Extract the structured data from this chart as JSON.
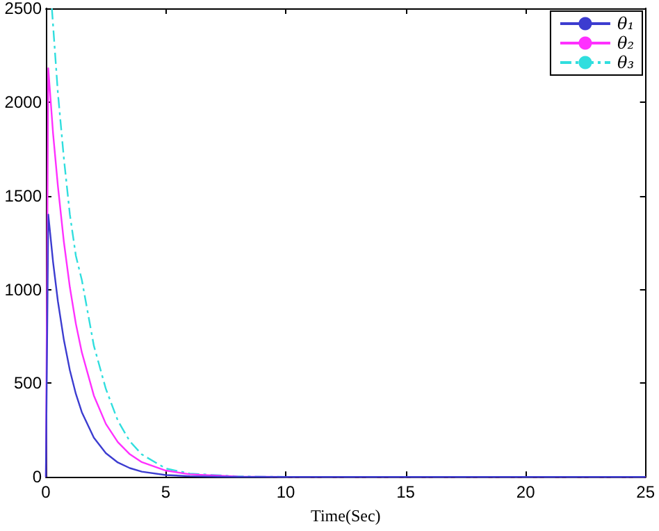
{
  "chart_data": {
    "type": "line",
    "xlabel": "Time(Sec)",
    "xlim": [
      0,
      25
    ],
    "xticks": [
      0,
      5,
      10,
      15,
      20,
      25
    ],
    "ylim": [
      0,
      2500
    ],
    "yticks": [
      0,
      500,
      1000,
      1500,
      2000,
      2500
    ],
    "grid": false,
    "legend": "top right",
    "marker": "none",
    "series": [
      {
        "name": "θ₁",
        "color": "#3c3cd0",
        "line_style": "solid",
        "x": [
          0,
          0.1,
          0.3,
          0.5,
          0.75,
          1,
          1.25,
          1.5,
          2,
          2.5,
          3,
          3.5,
          4,
          5,
          6,
          8,
          10,
          25
        ],
        "values": [
          0,
          1400,
          1146,
          938,
          731,
          569,
          443,
          345,
          209,
          127,
          77,
          47,
          28,
          10,
          4,
          0,
          0,
          0
        ]
      },
      {
        "name": "θ₂",
        "color": "#ff30ff",
        "line_style": "solid",
        "x": [
          0,
          0.1,
          0.3,
          0.5,
          0.75,
          1,
          1.25,
          1.5,
          2,
          2.5,
          3,
          3.5,
          4,
          5,
          6,
          8,
          10,
          25
        ],
        "values": [
          0,
          2180,
          1832,
          1553,
          1254,
          1012,
          817,
          664,
          434,
          283,
          186,
          121,
          79,
          34,
          14,
          2,
          0,
          0
        ]
      },
      {
        "name": "θ₃",
        "color": "#30dede",
        "line_style": "dashed",
        "x": [
          0.25,
          0.5,
          0.75,
          1,
          1.25,
          1.5,
          2,
          2.5,
          3,
          3.5,
          4,
          5,
          6,
          8,
          10,
          25
        ],
        "values": [
          2500,
          2050,
          1700,
          1400,
          1180,
          1050,
          700,
          470,
          300,
          190,
          120,
          45,
          18,
          3,
          0,
          0
        ]
      }
    ]
  }
}
